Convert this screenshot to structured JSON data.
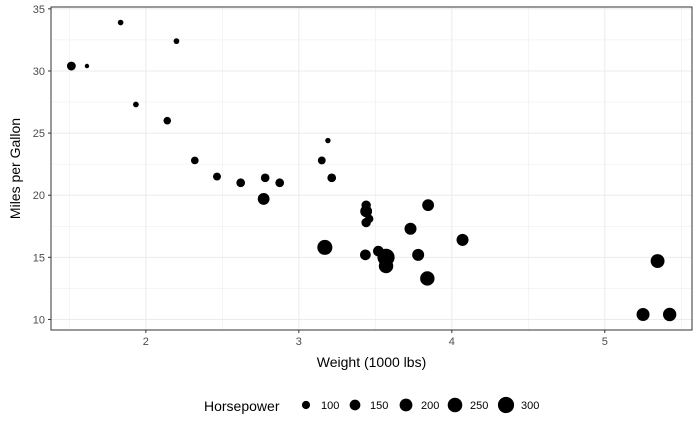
{
  "chart_data": {
    "type": "scatter",
    "title": "",
    "xlabel": "Weight (1000 lbs)",
    "ylabel": "Miles per Gallon",
    "xlim": [
      1.38,
      5.57
    ],
    "ylim": [
      9.15,
      35.15
    ],
    "x_ticks": [
      2,
      3,
      4,
      5
    ],
    "y_ticks": [
      10,
      15,
      20,
      25,
      30,
      35
    ],
    "grid": true,
    "point_color": "#000000",
    "size_encoding": "Horsepower",
    "size_range": [
      52,
      335
    ],
    "legend": {
      "title": "Horsepower",
      "placement": "bottom",
      "values": [
        100,
        150,
        200,
        250,
        300
      ]
    },
    "points": [
      {
        "x": 2.62,
        "y": 21.0,
        "size": 110
      },
      {
        "x": 2.875,
        "y": 21.0,
        "size": 110
      },
      {
        "x": 2.32,
        "y": 22.8,
        "size": 93
      },
      {
        "x": 3.215,
        "y": 21.4,
        "size": 110
      },
      {
        "x": 3.44,
        "y": 18.7,
        "size": 175
      },
      {
        "x": 3.46,
        "y": 18.1,
        "size": 105
      },
      {
        "x": 3.57,
        "y": 14.3,
        "size": 245
      },
      {
        "x": 3.19,
        "y": 24.4,
        "size": 62
      },
      {
        "x": 3.15,
        "y": 22.8,
        "size": 95
      },
      {
        "x": 3.44,
        "y": 19.2,
        "size": 123
      },
      {
        "x": 3.44,
        "y": 17.8,
        "size": 123
      },
      {
        "x": 4.07,
        "y": 16.4,
        "size": 180
      },
      {
        "x": 3.73,
        "y": 17.3,
        "size": 180
      },
      {
        "x": 3.78,
        "y": 15.2,
        "size": 180
      },
      {
        "x": 5.25,
        "y": 10.4,
        "size": 205
      },
      {
        "x": 5.424,
        "y": 10.4,
        "size": 215
      },
      {
        "x": 5.345,
        "y": 14.7,
        "size": 230
      },
      {
        "x": 2.2,
        "y": 32.4,
        "size": 66
      },
      {
        "x": 1.615,
        "y": 30.4,
        "size": 52
      },
      {
        "x": 1.835,
        "y": 33.9,
        "size": 65
      },
      {
        "x": 2.465,
        "y": 21.5,
        "size": 97
      },
      {
        "x": 3.52,
        "y": 15.5,
        "size": 150
      },
      {
        "x": 3.435,
        "y": 15.2,
        "size": 150
      },
      {
        "x": 3.84,
        "y": 13.3,
        "size": 245
      },
      {
        "x": 3.845,
        "y": 19.2,
        "size": 175
      },
      {
        "x": 1.935,
        "y": 27.3,
        "size": 66
      },
      {
        "x": 2.14,
        "y": 26.0,
        "size": 91
      },
      {
        "x": 1.513,
        "y": 30.4,
        "size": 113
      },
      {
        "x": 3.17,
        "y": 15.8,
        "size": 264
      },
      {
        "x": 2.77,
        "y": 19.7,
        "size": 175
      },
      {
        "x": 3.57,
        "y": 15.0,
        "size": 335
      },
      {
        "x": 2.78,
        "y": 21.4,
        "size": 109
      }
    ]
  }
}
